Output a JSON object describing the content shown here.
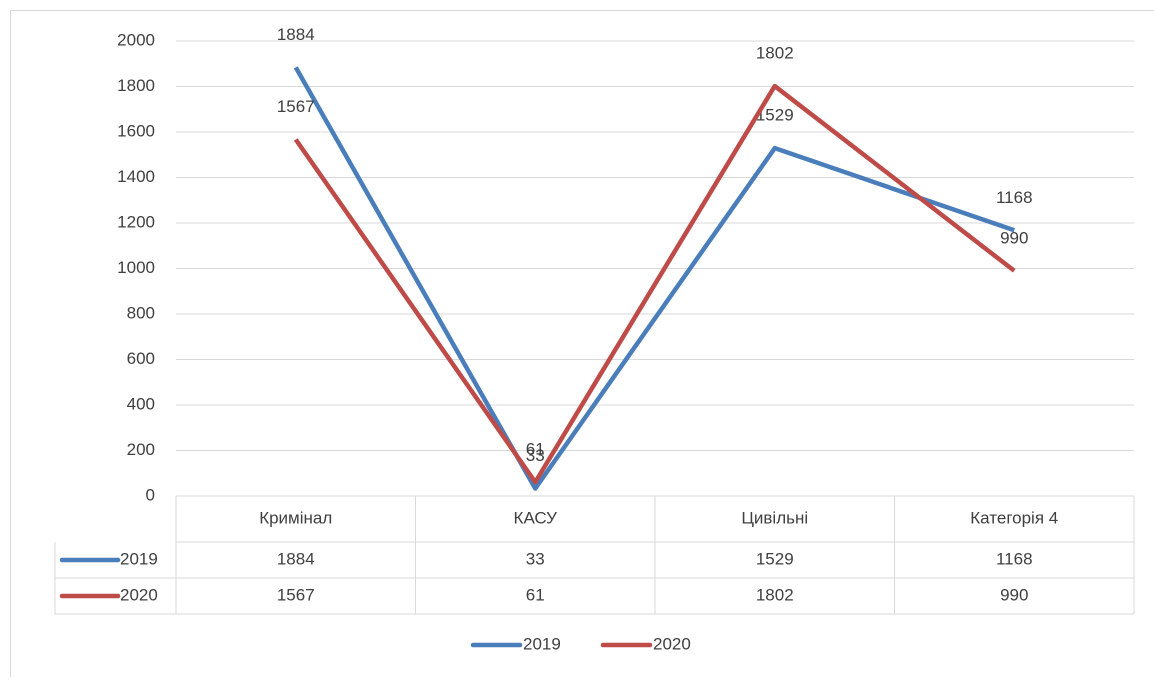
{
  "chart_data": {
    "type": "line",
    "categories": [
      "Кримінал",
      "КАСУ",
      "Цивільні",
      "Категорія 4"
    ],
    "series": [
      {
        "name": "2019",
        "color": "#4a7ebb",
        "values": [
          1884,
          33,
          1529,
          1168
        ]
      },
      {
        "name": "2020",
        "color": "#be4b48",
        "values": [
          1567,
          61,
          1802,
          990
        ]
      }
    ],
    "ylim": [
      0,
      2000
    ],
    "yticks": [
      0,
      200,
      400,
      600,
      800,
      1000,
      1200,
      1400,
      1600,
      1800,
      2000
    ],
    "grid": true,
    "legend": "bottom",
    "data_table": true
  }
}
